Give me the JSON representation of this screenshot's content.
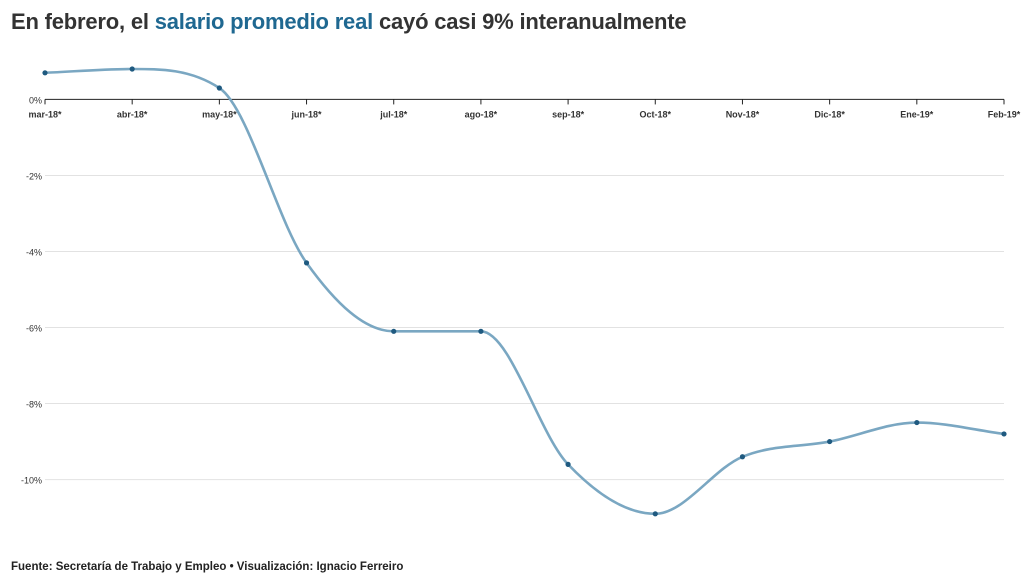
{
  "title": {
    "prefix": "En febrero, el ",
    "highlight": "salario promedio real",
    "suffix": " cayó casi 9% interanualmente"
  },
  "footer": "Fuente: Secretaría de Trabajo y Empleo • Visualización: Ignacio Ferreiro",
  "colors": {
    "title_highlight": "#1f6891",
    "line": "#7aa7c2",
    "points": "#1f5a80"
  },
  "chart_data": {
    "type": "line",
    "categories": [
      "mar-18*",
      "abr-18*",
      "may-18*",
      "jun-18*",
      "jul-18*",
      "ago-18*",
      "sep-18*",
      "Oct-18*",
      "Nov-18*",
      "Dic-18*",
      "Ene-19*",
      "Feb-19*"
    ],
    "series": [
      {
        "values": [
          0.7,
          0.8,
          0.3,
          -4.3,
          -6.1,
          -6.1,
          -9.6,
          -10.9,
          -9.4,
          -9.0,
          -8.5,
          -8.8
        ]
      }
    ],
    "yticks": [
      0,
      -2,
      -4,
      -6,
      -8,
      -10
    ],
    "ytick_labels": [
      "0%",
      "-2%",
      "-4%",
      "-6%",
      "-8%",
      "-10%"
    ],
    "ylim": [
      -11.3,
      1.3
    ],
    "grid": true,
    "smooth": true
  }
}
